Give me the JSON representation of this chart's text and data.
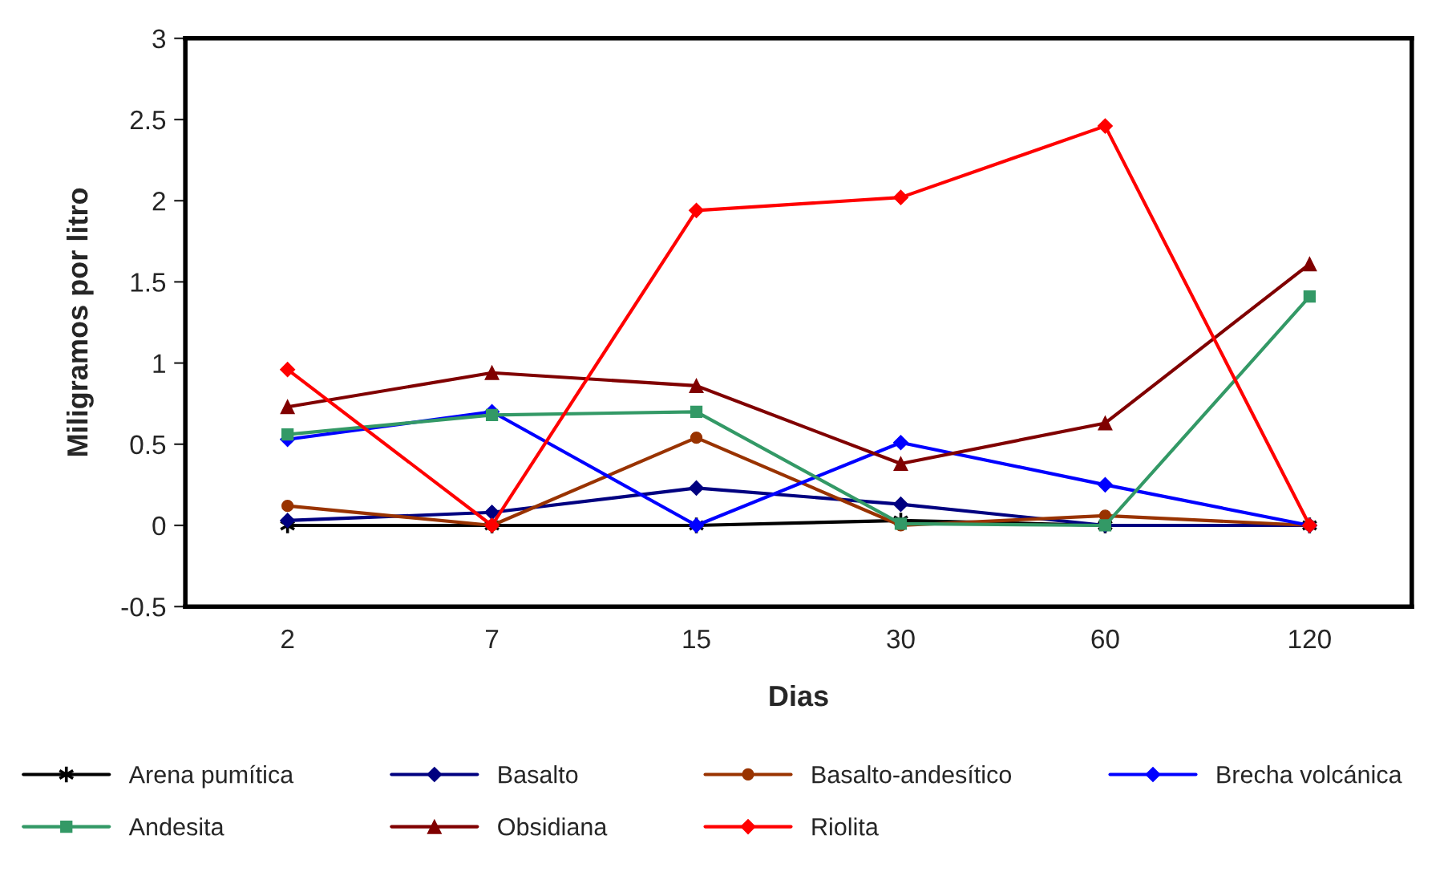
{
  "chart_data": {
    "type": "line",
    "xlabel": "Dias",
    "ylabel": "Miligramos por litro",
    "categories": [
      "2",
      "7",
      "15",
      "30",
      "60",
      "120"
    ],
    "ylim": [
      -0.5,
      3
    ],
    "yticks": [
      -0.5,
      0,
      0.5,
      1,
      1.5,
      2,
      2.5,
      3
    ],
    "grid": false,
    "legend": "bottom",
    "line_style": "solid",
    "series": [
      {
        "name": "Arena pumítica",
        "color": "#000000",
        "marker": "cross",
        "values": [
          0,
          0,
          0,
          0.03,
          0,
          0
        ]
      },
      {
        "name": "Basalto",
        "color": "#000080",
        "marker": "diamond",
        "values": [
          0.03,
          0.08,
          0.23,
          0.13,
          0,
          0
        ]
      },
      {
        "name": "Basalto-andesítico",
        "color": "#993300",
        "marker": "circle",
        "values": [
          0.12,
          0,
          0.54,
          0,
          0.06,
          0
        ]
      },
      {
        "name": "Brecha volcánica",
        "color": "#0000ff",
        "marker": "diamond",
        "values": [
          0.53,
          0.7,
          0,
          0.51,
          0.25,
          0
        ]
      },
      {
        "name": "Andesita",
        "color": "#339966",
        "marker": "square",
        "values": [
          0.56,
          0.68,
          0.7,
          0.01,
          0,
          1.41
        ]
      },
      {
        "name": "Obsidiana",
        "color": "#800000",
        "marker": "triangle",
        "values": [
          0.73,
          0.94,
          0.86,
          0.38,
          0.63,
          1.61
        ]
      },
      {
        "name": "Riolita",
        "color": "#ff0000",
        "marker": "diamond",
        "values": [
          0.96,
          0,
          1.94,
          2.02,
          2.46,
          0
        ]
      }
    ]
  }
}
